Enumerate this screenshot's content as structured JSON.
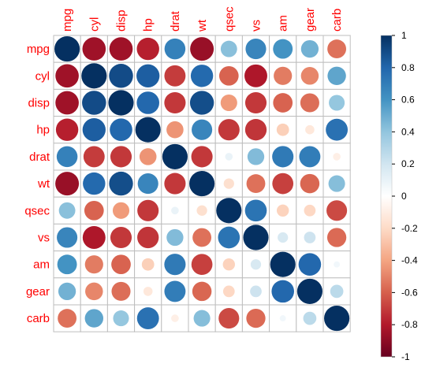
{
  "chart_data": {
    "type": "heatmap",
    "variables": [
      "mpg",
      "cyl",
      "disp",
      "hp",
      "drat",
      "wt",
      "qsec",
      "vs",
      "am",
      "gear",
      "carb"
    ],
    "matrix": [
      [
        1.0,
        -0.85,
        -0.85,
        -0.78,
        0.68,
        -0.87,
        0.42,
        0.66,
        0.6,
        0.48,
        -0.55
      ],
      [
        -0.85,
        1.0,
        0.9,
        0.83,
        -0.7,
        0.78,
        -0.59,
        -0.81,
        -0.52,
        -0.49,
        0.53
      ],
      [
        -0.85,
        0.9,
        1.0,
        0.79,
        -0.71,
        0.89,
        -0.43,
        -0.71,
        -0.59,
        -0.56,
        0.39
      ],
      [
        -0.78,
        0.83,
        0.79,
        1.0,
        -0.45,
        0.66,
        -0.71,
        -0.72,
        -0.24,
        -0.13,
        0.75
      ],
      [
        0.68,
        -0.7,
        -0.71,
        -0.45,
        1.0,
        -0.71,
        0.09,
        0.44,
        0.71,
        0.7,
        -0.09
      ],
      [
        -0.87,
        0.78,
        0.89,
        0.66,
        -0.71,
        1.0,
        -0.17,
        -0.55,
        -0.69,
        -0.58,
        0.43
      ],
      [
        0.42,
        -0.59,
        -0.43,
        -0.71,
        0.09,
        -0.17,
        1.0,
        0.74,
        -0.23,
        -0.21,
        -0.66
      ],
      [
        0.66,
        -0.81,
        -0.71,
        -0.72,
        0.44,
        -0.55,
        0.74,
        1.0,
        0.17,
        0.21,
        -0.57
      ],
      [
        0.6,
        -0.52,
        -0.59,
        -0.24,
        0.71,
        -0.69,
        -0.23,
        0.17,
        1.0,
        0.79,
        0.06
      ],
      [
        0.48,
        -0.49,
        -0.56,
        -0.13,
        0.7,
        -0.58,
        -0.21,
        0.21,
        0.79,
        1.0,
        0.27
      ],
      [
        -0.55,
        0.53,
        0.39,
        0.75,
        -0.09,
        0.43,
        -0.66,
        -0.57,
        0.06,
        0.27,
        1.0
      ]
    ],
    "scale": {
      "min": -1,
      "max": 1,
      "tick_labels": [
        "1",
        "0.8",
        "0.6",
        "0.4",
        "0.2",
        "0",
        "-0.2",
        "-0.4",
        "-0.6",
        "-0.8",
        "-1"
      ],
      "tick_values": [
        1,
        0.8,
        0.6,
        0.4,
        0.2,
        0,
        -0.2,
        -0.4,
        -0.6,
        -0.8,
        -1
      ]
    },
    "label_color": "#FF0000",
    "grid_color": "#BEBEBE",
    "colorbar_position": "right",
    "palette": [
      "#67001F",
      "#B2182B",
      "#D6604D",
      "#F4A582",
      "#FDDBC7",
      "#FFFFFF",
      "#D1E5F0",
      "#92C5DE",
      "#4393C3",
      "#2166AC",
      "#053061"
    ]
  }
}
